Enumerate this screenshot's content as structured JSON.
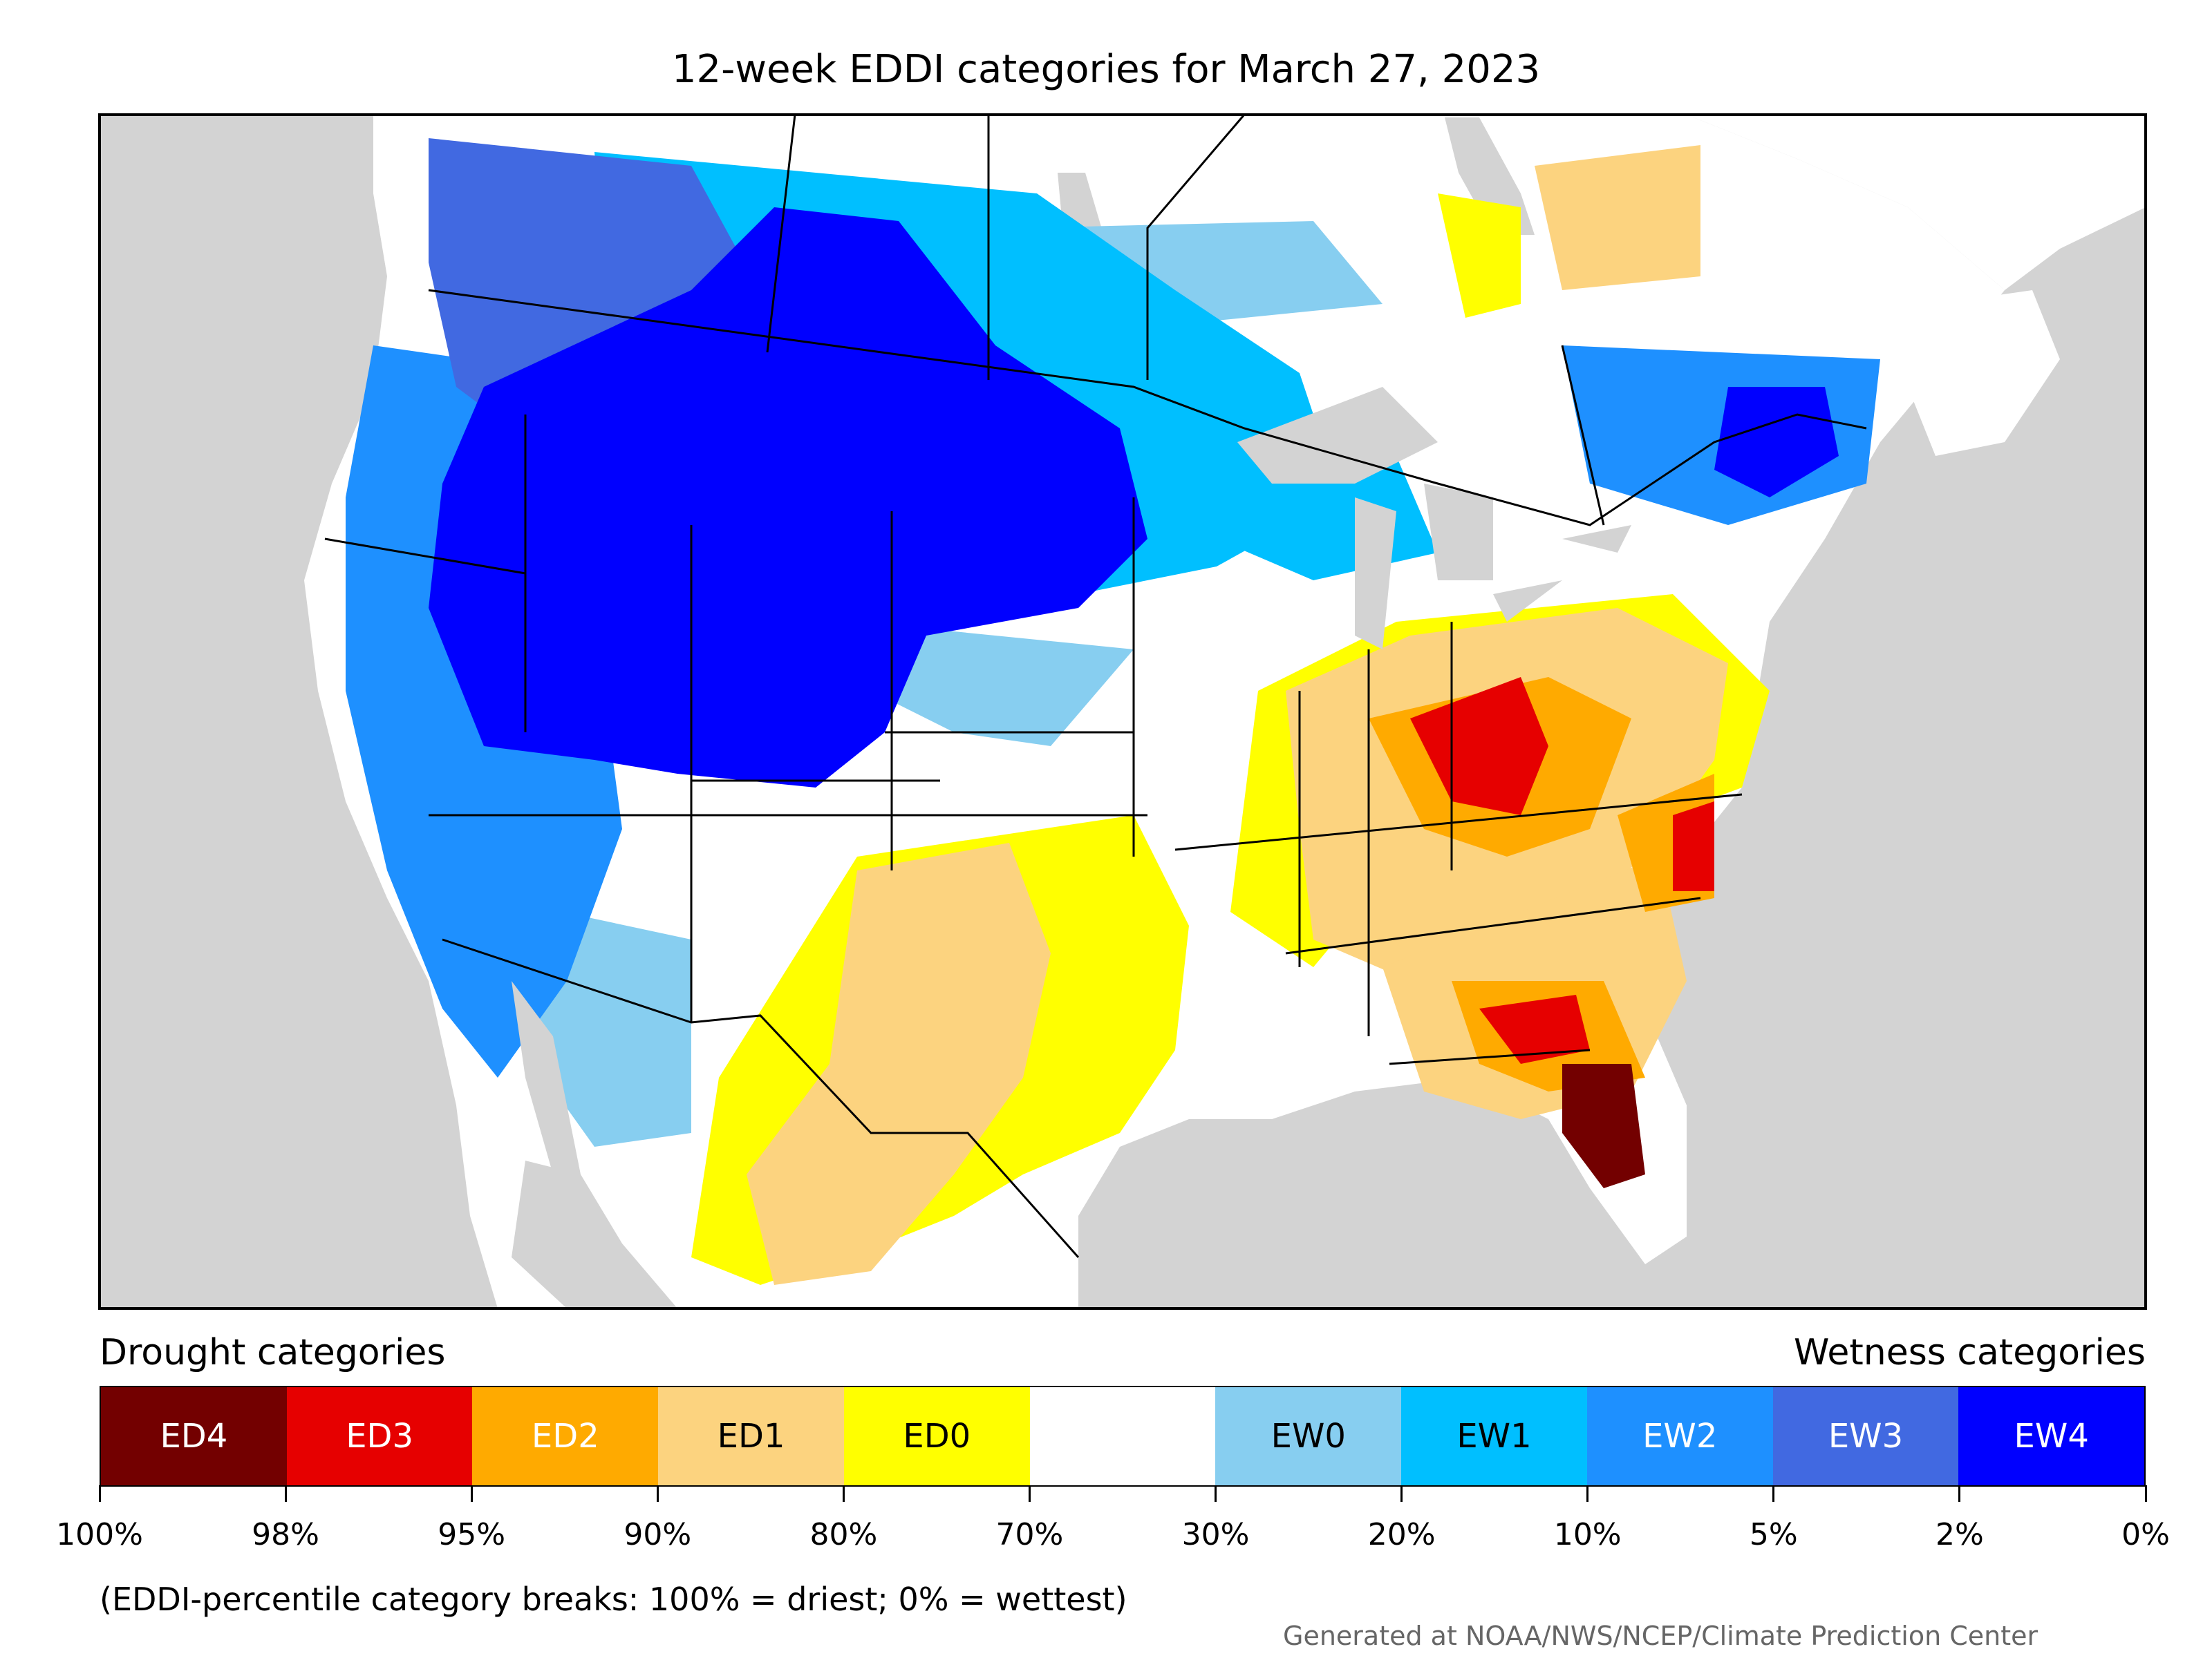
{
  "title": "12-week EDDI categories for March 27, 2023",
  "legend": {
    "drought_heading": "Drought categories",
    "wetness_heading": "Wetness categories",
    "categories": [
      {
        "label": "ED4",
        "color": "#730000",
        "text_color": "#ffffff"
      },
      {
        "label": "ED3",
        "color": "#e60000",
        "text_color": "#ffffff"
      },
      {
        "label": "ED2",
        "color": "#ffaa00",
        "text_color": "#ffffff"
      },
      {
        "label": "ED1",
        "color": "#fcd37f",
        "text_color": "#000000"
      },
      {
        "label": "ED0",
        "color": "#ffff00",
        "text_color": "#000000"
      },
      {
        "label": "",
        "color": "#ffffff",
        "text_color": "#000000"
      },
      {
        "label": "EW0",
        "color": "#87cef0",
        "text_color": "#000000"
      },
      {
        "label": "EW1",
        "color": "#00bfff",
        "text_color": "#000000"
      },
      {
        "label": "EW2",
        "color": "#1e90ff",
        "text_color": "#ffffff"
      },
      {
        "label": "EW3",
        "color": "#4169e1",
        "text_color": "#ffffff"
      },
      {
        "label": "EW4",
        "color": "#0000ff",
        "text_color": "#ffffff"
      }
    ],
    "tick_labels": [
      "100%",
      "98%",
      "95%",
      "90%",
      "80%",
      "70%",
      "30%",
      "20%",
      "10%",
      "5%",
      "2%",
      "0%"
    ]
  },
  "note": "(EDDI-percentile category breaks: 100% = driest; 0% = wettest)",
  "credit": "Generated at NOAA/NWS/NCEP/Climate Prediction Center",
  "map_colors": {
    "land_outside": "#d3d3d3",
    "water": "#d3d3d3",
    "neutral": "#ffffff",
    "border": "#000000"
  }
}
